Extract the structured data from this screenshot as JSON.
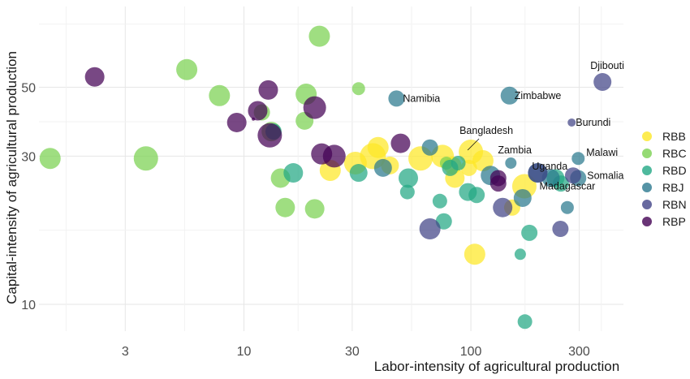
{
  "chart_data": {
    "type": "scatter",
    "xlabel": "Labor-intensity of agricultural production",
    "ylabel": "Capital-intensity of agricultural production",
    "x_scale": "log",
    "y_scale": "log",
    "xlim": [
      1.25,
      470
    ],
    "ylim": [
      8.2,
      91
    ],
    "x_ticks": [
      3,
      10,
      30,
      100,
      300
    ],
    "x_tick_labels": [
      "3",
      "10",
      "30",
      "100",
      "300"
    ],
    "y_ticks": [
      10,
      30,
      50
    ],
    "y_tick_labels": [
      "10",
      "30",
      "50"
    ],
    "grid": true,
    "legend_position": "right",
    "series": [
      {
        "name": "RBB",
        "color": "#FDE725",
        "points": [
          {
            "x": 24,
            "y": 27,
            "s": 13
          },
          {
            "x": 31,
            "y": 28.5,
            "s": 14
          },
          {
            "x": 37,
            "y": 30,
            "s": 16
          },
          {
            "x": 39,
            "y": 32,
            "s": 13
          },
          {
            "x": 44,
            "y": 28,
            "s": 11
          },
          {
            "x": 60,
            "y": 29.5,
            "s": 15
          },
          {
            "x": 75,
            "y": 30,
            "s": 14
          },
          {
            "x": 83,
            "y": 28,
            "s": 11
          },
          {
            "x": 85,
            "y": 25.5,
            "s": 12
          },
          {
            "x": 98,
            "y": 27.5,
            "s": 10
          },
          {
            "x": 100,
            "y": 31,
            "s": 15
          },
          {
            "x": 113,
            "y": 29,
            "s": 13
          },
          {
            "x": 104,
            "y": 14.5,
            "s": 13
          },
          {
            "x": 152,
            "y": 20.5,
            "s": 10
          },
          {
            "x": 172,
            "y": 24,
            "s": 15
          }
        ]
      },
      {
        "name": "RBC",
        "color": "#7AD151",
        "points": [
          {
            "x": 1.4,
            "y": 29.5,
            "s": 13
          },
          {
            "x": 3.7,
            "y": 29.5,
            "s": 15
          },
          {
            "x": 5.6,
            "y": 57,
            "s": 13
          },
          {
            "x": 7.8,
            "y": 47,
            "s": 13
          },
          {
            "x": 12,
            "y": 41.5,
            "s": 10
          },
          {
            "x": 13.2,
            "y": 36,
            "s": 12
          },
          {
            "x": 14.5,
            "y": 25.5,
            "s": 12
          },
          {
            "x": 15.2,
            "y": 20.5,
            "s": 12
          },
          {
            "x": 18.5,
            "y": 39,
            "s": 11
          },
          {
            "x": 18.8,
            "y": 47.5,
            "s": 13
          },
          {
            "x": 20.5,
            "y": 20.3,
            "s": 12
          },
          {
            "x": 21.5,
            "y": 73,
            "s": 13
          },
          {
            "x": 32,
            "y": 49.5,
            "s": 8
          },
          {
            "x": 78,
            "y": 28.5,
            "s": 8
          }
        ]
      },
      {
        "name": "RBD",
        "color": "#22A884",
        "points": [
          {
            "x": 13.5,
            "y": 36,
            "s": 10
          },
          {
            "x": 16.5,
            "y": 26.5,
            "s": 12
          },
          {
            "x": 32,
            "y": 26.5,
            "s": 11
          },
          {
            "x": 53,
            "y": 25.5,
            "s": 12
          },
          {
            "x": 52.5,
            "y": 23,
            "s": 9
          },
          {
            "x": 73,
            "y": 21.5,
            "s": 9
          },
          {
            "x": 76,
            "y": 18.5,
            "s": 10
          },
          {
            "x": 81,
            "y": 27.5,
            "s": 10
          },
          {
            "x": 88,
            "y": 28.5,
            "s": 9
          },
          {
            "x": 97,
            "y": 23,
            "s": 11
          },
          {
            "x": 106,
            "y": 22.5,
            "s": 10
          },
          {
            "x": 165,
            "y": 14.5,
            "s": 7
          },
          {
            "x": 181,
            "y": 17,
            "s": 10
          },
          {
            "x": 236,
            "y": 25.5,
            "s": 11
          },
          {
            "x": 249,
            "y": 24.5,
            "s": 10
          },
          {
            "x": 173,
            "y": 8.8,
            "s": 9
          }
        ]
      },
      {
        "name": "RBJ",
        "color": "#2A788E",
        "points": [
          {
            "x": 47,
            "y": 46,
            "s": 10,
            "label": "Namibia"
          },
          {
            "x": 66,
            "y": 32,
            "s": 10
          },
          {
            "x": 41,
            "y": 27.5,
            "s": 11
          },
          {
            "x": 148,
            "y": 47,
            "s": 11,
            "label": "Zimbabwe"
          },
          {
            "x": 150,
            "y": 28.5,
            "s": 7,
            "label": "Zambia"
          },
          {
            "x": 122,
            "y": 26,
            "s": 12
          },
          {
            "x": 169,
            "y": 22,
            "s": 11
          },
          {
            "x": 197,
            "y": 26.5,
            "s": 12,
            "label": "Uganda"
          },
          {
            "x": 225,
            "y": 25.5,
            "s": 11,
            "label": "Madagascar"
          },
          {
            "x": 297,
            "y": 29.5,
            "s": 8,
            "label": "Malawi"
          },
          {
            "x": 297,
            "y": 25.5,
            "s": 10,
            "label": "Somalia"
          },
          {
            "x": 266,
            "y": 20.5,
            "s": 8
          }
        ]
      },
      {
        "name": "RBN",
        "color": "#414487",
        "points": [
          {
            "x": 380,
            "y": 52,
            "s": 11,
            "label": "Djibouti"
          },
          {
            "x": 278,
            "y": 38.5,
            "s": 5,
            "label": "Burundi"
          },
          {
            "x": 66,
            "y": 17.5,
            "s": 13
          },
          {
            "x": 138,
            "y": 20.5,
            "s": 12
          },
          {
            "x": 197,
            "y": 26.5,
            "s": 12
          },
          {
            "x": 248,
            "y": 17.5,
            "s": 10
          },
          {
            "x": 282,
            "y": 26,
            "s": 10
          }
        ]
      },
      {
        "name": "RBP",
        "color": "#440154",
        "points": [
          {
            "x": 2.2,
            "y": 54,
            "s": 12
          },
          {
            "x": 9.3,
            "y": 38.5,
            "s": 12
          },
          {
            "x": 11,
            "y": 39.5,
            "s": 2
          },
          {
            "x": 11.5,
            "y": 42,
            "s": 12
          },
          {
            "x": 12.8,
            "y": 49,
            "s": 12
          },
          {
            "x": 13,
            "y": 35,
            "s": 15
          },
          {
            "x": 20.5,
            "y": 43,
            "s": 14
          },
          {
            "x": 22,
            "y": 30.5,
            "s": 13
          },
          {
            "x": 25,
            "y": 30,
            "s": 14
          },
          {
            "x": 49,
            "y": 33,
            "s": 12
          },
          {
            "x": 132,
            "y": 25.5,
            "s": 10
          },
          {
            "x": 132,
            "y": 24.5,
            "s": 10
          }
        ]
      }
    ]
  }
}
